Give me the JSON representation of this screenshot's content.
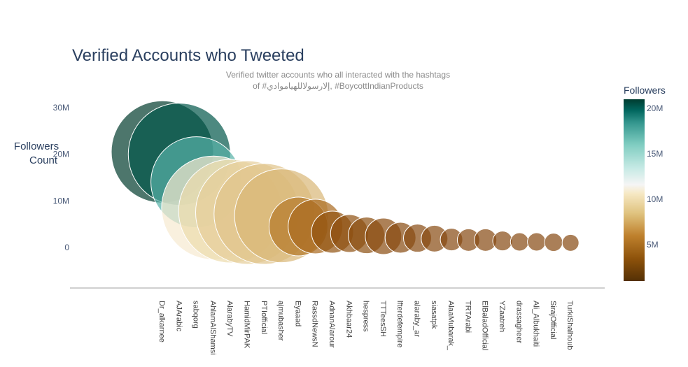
{
  "chart_data": {
    "type": "scatter",
    "title": "Verified Accounts who Tweeted",
    "subtitle_lines": [
      "Verified twitter accounts who all interacted with the hashtags",
      "of #إلارسولاللهياموادي, #BoycottIndianProducts"
    ],
    "ylabel_lines": [
      "Followers",
      "Count"
    ],
    "yticks": [
      {
        "value": 0,
        "label": "0"
      },
      {
        "value": 10000000,
        "label": "10M"
      },
      {
        "value": 20000000,
        "label": "20M"
      },
      {
        "value": 30000000,
        "label": "30M"
      }
    ],
    "ylim": [
      -8500000,
      33500000
    ],
    "colorbar": {
      "title": "Followers",
      "colorscale": "BrBG",
      "range": [
        1000000,
        21000000
      ],
      "ticks": [
        {
          "value": 5000000,
          "label": "5M"
        },
        {
          "value": 10000000,
          "label": "10M"
        },
        {
          "value": 15000000,
          "label": "15M"
        },
        {
          "value": 20000000,
          "label": "20M"
        }
      ]
    },
    "x": [
      "Dr_alkarnee",
      "AJArabic",
      "sabqorg",
      "AhlamAlShamsi",
      "AlarabyTV",
      "HamidMirPAK",
      "PTIofficial",
      "ajmubasher",
      "Eyaaad",
      "RassdNewsN",
      "AdnanAlarour",
      "Akhbaar24",
      "hespress",
      "TTTeesSH",
      "lfterdefempire",
      "alaraby_ar",
      "siasatpk",
      "AlaaMubarak_",
      "TRTArabi",
      "ElBaladOfficial",
      "YZaatreh",
      "drassagheer",
      "Ali_Albukhaiti",
      "SirajOfficial",
      "TurkiShalhoub"
    ],
    "y": [
      20500000,
      20000000,
      14000000,
      8500000,
      7800000,
      7500000,
      7200000,
      6800000,
      4500000,
      4500000,
      3300000,
      3000000,
      2600000,
      2400000,
      2100000,
      2000000,
      1900000,
      1700000,
      1600000,
      1600000,
      1400000,
      1200000,
      1200000,
      1100000,
      1000000
    ],
    "colors": [
      "#013c2e",
      "#02574a",
      "#56b1a6",
      "#f6ead0",
      "#ecdbac",
      "#e5cd98",
      "#e0c38a",
      "#d9b676",
      "#b37728",
      "#a9691f",
      "#91530f",
      "#8f500f",
      "#8c4e10",
      "#8a4c10",
      "#884a10",
      "#874a11",
      "#874a11",
      "#864911",
      "#864911",
      "#864911",
      "#864911",
      "#864911",
      "#864911",
      "#864911",
      "#864911"
    ],
    "opacity": 0.7,
    "sizes": [
      73,
      73,
      65,
      74,
      74,
      74,
      72,
      67,
      42,
      39,
      30,
      27,
      26,
      26,
      22,
      20,
      19,
      16,
      16,
      16,
      14,
      13,
      13,
      13,
      12
    ]
  }
}
